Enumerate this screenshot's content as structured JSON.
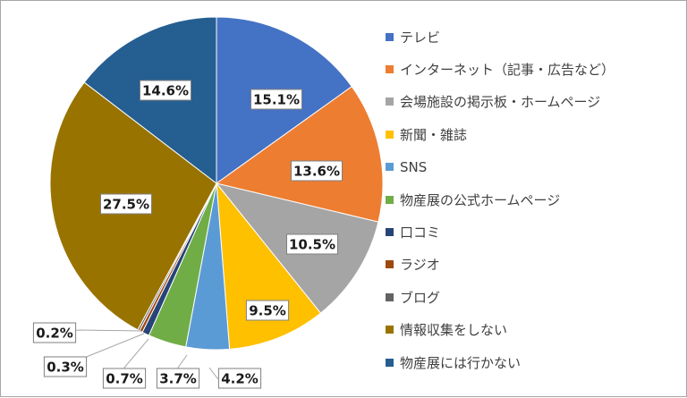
{
  "chart_data": {
    "type": "pie",
    "start_angle_deg": 0,
    "direction": "clockwise",
    "legend_position": "right",
    "slices": [
      {
        "label": "テレビ",
        "value": 15.1,
        "display": "15.1%",
        "color": "#4472c4"
      },
      {
        "label": "インターネット（記事・広告など）",
        "value": 13.6,
        "display": "13.6%",
        "color": "#ed7d31"
      },
      {
        "label": "会場施設の掲示板・ホームページ",
        "value": 10.5,
        "display": "10.5%",
        "color": "#a5a5a5"
      },
      {
        "label": "新聞・雑誌",
        "value": 9.5,
        "display": "9.5%",
        "color": "#ffc000"
      },
      {
        "label": "SNS",
        "value": 4.2,
        "display": "4.2%",
        "color": "#5b9bd5"
      },
      {
        "label": "物産展の公式ホームページ",
        "value": 3.7,
        "display": "3.7%",
        "color": "#70ad47"
      },
      {
        "label": "口コミ",
        "value": 0.7,
        "display": "0.7%",
        "color": "#264478"
      },
      {
        "label": "ラジオ",
        "value": 0.3,
        "display": "0.3%",
        "color": "#9e480e"
      },
      {
        "label": "ブログ",
        "value": 0.2,
        "display": "0.2%",
        "color": "#636363"
      },
      {
        "label": "情報収集をしない",
        "value": 27.5,
        "display": "27.5%",
        "color": "#997300"
      },
      {
        "label": "物産展には行かない",
        "value": 14.6,
        "display": "14.6%",
        "color": "#255e91"
      }
    ]
  }
}
